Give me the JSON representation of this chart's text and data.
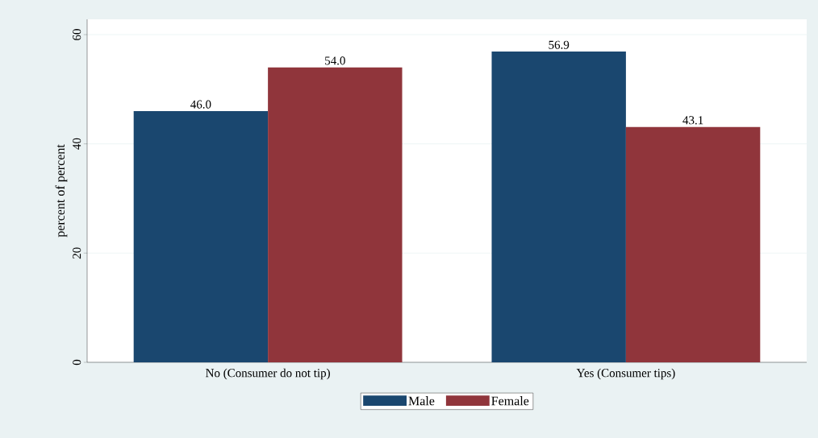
{
  "chart_data": {
    "type": "bar",
    "ylabel": "percent of percent",
    "categories": [
      "No (Consumer do not tip)",
      "Yes (Consumer tips)"
    ],
    "series": [
      {
        "name": "Male",
        "color": "#1a476f",
        "values": [
          46.0,
          56.9
        ],
        "value_labels": [
          "46.0",
          "56.9"
        ]
      },
      {
        "name": "Female",
        "color": "#90353b",
        "values": [
          54.0,
          43.1
        ],
        "value_labels": [
          "54.0",
          "43.1"
        ]
      }
    ],
    "ylim": [
      0,
      62.8
    ],
    "yticks": [
      0,
      20,
      40,
      60
    ],
    "grid": "y",
    "legend": "bottom"
  }
}
